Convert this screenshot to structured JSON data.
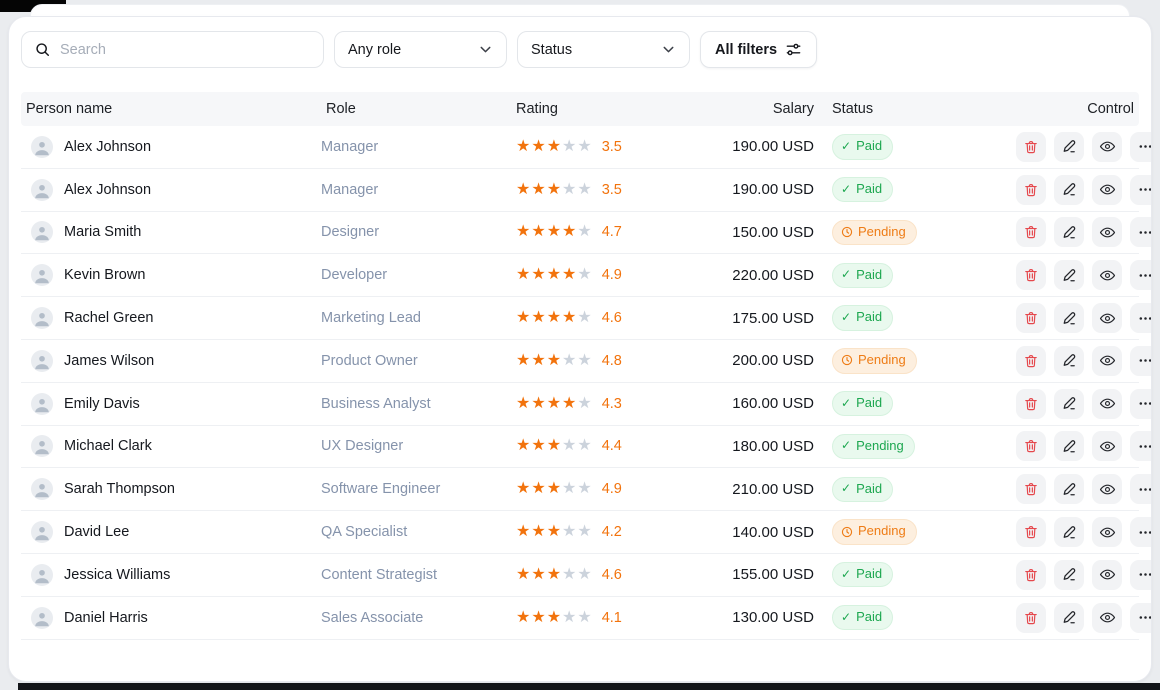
{
  "filters": {
    "search_placeholder": "Search",
    "role_select_value": "Any role",
    "status_select_value": "Status",
    "all_filters_label": "All filters"
  },
  "icons": {
    "search": "magnifier",
    "selects": "chevron-down",
    "all_filters": "adjustments-sliders",
    "row_controls": [
      "trash",
      "pencil-edit",
      "eye-view",
      "ellipsis-more"
    ],
    "status_check": "checkmark",
    "status_clock": "clock",
    "avatar": "person-silhouette"
  },
  "colors": {
    "accent_orange": "#f2730d",
    "star_empty": "#ccd3dc",
    "green_text": "#1da750",
    "green_bg": "#e9f9ee",
    "orange_text": "#ee7c16",
    "orange_bg": "#fdefdf",
    "danger_red": "#e5484d",
    "role_text": "#8593ab"
  },
  "table": {
    "columns": [
      "Person name",
      "Role",
      "Rating",
      "Salary",
      "Status",
      "Control"
    ],
    "rows": [
      {
        "name": "Alex Johnson",
        "role": "Manager",
        "rating": "3.5",
        "stars_filled": 3,
        "salary": "190.00 USD",
        "status": {
          "label": "Paid",
          "variant": "green",
          "icon": "check"
        }
      },
      {
        "name": "Alex Johnson",
        "role": "Manager",
        "rating": "3.5",
        "stars_filled": 3,
        "salary": "190.00 USD",
        "status": {
          "label": "Paid",
          "variant": "green",
          "icon": "check"
        }
      },
      {
        "name": "Maria Smith",
        "role": "Designer",
        "rating": "4.7",
        "stars_filled": 4,
        "salary": "150.00 USD",
        "status": {
          "label": "Pending",
          "variant": "orange",
          "icon": "clock"
        }
      },
      {
        "name": "Kevin Brown",
        "role": "Developer",
        "rating": "4.9",
        "stars_filled": 4,
        "salary": "220.00 USD",
        "status": {
          "label": "Paid",
          "variant": "green",
          "icon": "check"
        }
      },
      {
        "name": "Rachel Green",
        "role": "Marketing Lead",
        "rating": "4.6",
        "stars_filled": 4,
        "salary": "175.00 USD",
        "status": {
          "label": "Paid",
          "variant": "green",
          "icon": "check"
        }
      },
      {
        "name": "James Wilson",
        "role": "Product Owner",
        "rating": "4.8",
        "stars_filled": 3,
        "salary": "200.00 USD",
        "status": {
          "label": "Pending",
          "variant": "orange",
          "icon": "clock"
        }
      },
      {
        "name": "Emily Davis",
        "role": "Business Analyst",
        "rating": "4.3",
        "stars_filled": 4,
        "salary": "160.00 USD",
        "status": {
          "label": "Paid",
          "variant": "green",
          "icon": "check"
        }
      },
      {
        "name": "Michael Clark",
        "role": "UX Designer",
        "rating": "4.4",
        "stars_filled": 3,
        "salary": "180.00 USD",
        "status": {
          "label": "Pending",
          "variant": "green",
          "icon": "check"
        }
      },
      {
        "name": "Sarah Thompson",
        "role": "Software Engineer",
        "rating": "4.9",
        "stars_filled": 3,
        "salary": "210.00 USD",
        "status": {
          "label": "Paid",
          "variant": "green",
          "icon": "check"
        }
      },
      {
        "name": "David Lee",
        "role": "QA Specialist",
        "rating": "4.2",
        "stars_filled": 3,
        "salary": "140.00 USD",
        "status": {
          "label": "Pending",
          "variant": "orange",
          "icon": "clock"
        }
      },
      {
        "name": "Jessica Williams",
        "role": "Content Strategist",
        "rating": "4.6",
        "stars_filled": 3,
        "salary": "155.00 USD",
        "status": {
          "label": "Paid",
          "variant": "green",
          "icon": "check"
        }
      },
      {
        "name": "Daniel Harris",
        "role": "Sales Associate",
        "rating": "4.1",
        "stars_filled": 3,
        "salary": "130.00 USD",
        "status": {
          "label": "Paid",
          "variant": "green",
          "icon": "check"
        }
      }
    ]
  }
}
